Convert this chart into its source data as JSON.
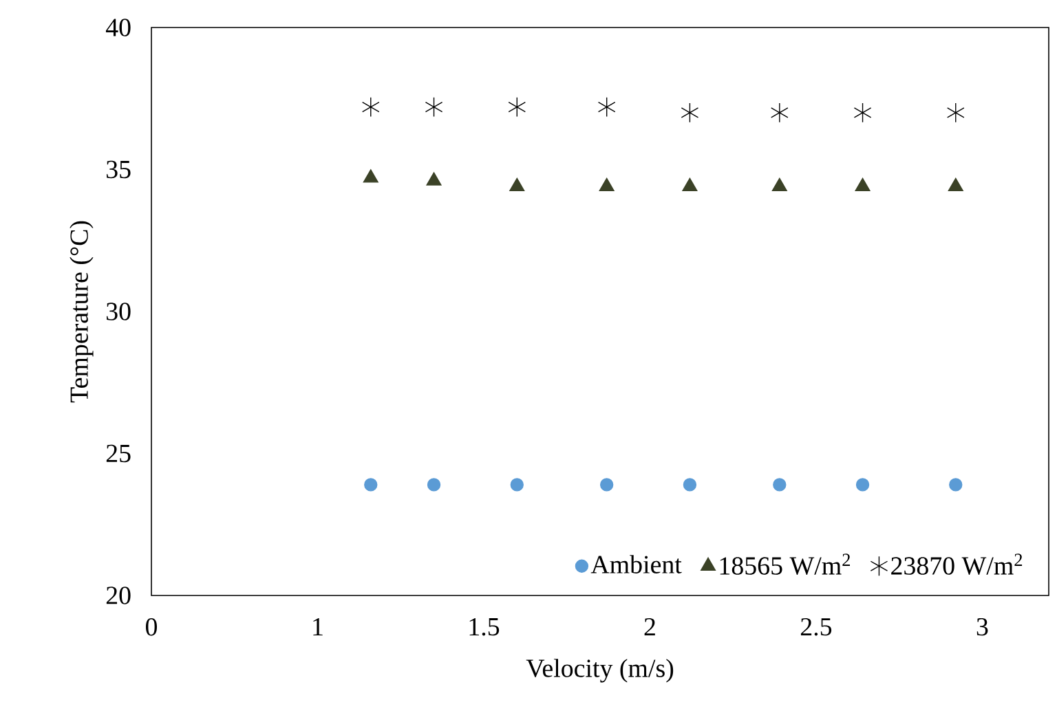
{
  "chart_data": {
    "type": "scatter",
    "xlabel": "Velocity (m/s)",
    "ylabel": "Temperature (°C)",
    "x": [
      1.16,
      1.35,
      1.6,
      1.87,
      2.12,
      2.39,
      2.64,
      2.92
    ],
    "series": [
      {
        "name": "Ambient",
        "color": "#5b9bd5",
        "marker": "circle",
        "values": [
          23.9,
          23.9,
          23.9,
          23.9,
          23.9,
          23.9,
          23.9,
          23.9
        ]
      },
      {
        "name": "18565 W/m$^{2}$",
        "color": "#3b4227",
        "marker": "triangle",
        "values": [
          34.7,
          34.6,
          34.4,
          34.4,
          34.4,
          34.4,
          34.4,
          34.4
        ]
      },
      {
        "name": "23870 W/m$^{2}$",
        "color": "#000000",
        "marker": "cross",
        "values": [
          37.2,
          37.2,
          37.2,
          37.2,
          37.0,
          37.0,
          37.0,
          37.0
        ]
      }
    ],
    "xlim": [
      0.5,
      3.2
    ],
    "xticks": [
      {
        "value": 0.5,
        "label": "0"
      },
      1,
      1.5,
      2,
      2.5,
      3
    ],
    "ylim": [
      20,
      40
    ],
    "yticks": [
      20,
      25,
      30,
      35,
      40
    ],
    "grid": false,
    "legend": "bottom"
  }
}
